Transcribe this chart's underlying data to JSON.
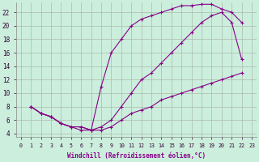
{
  "xlabel": "Windchill (Refroidissement éolien,°C)",
  "ylabel": "",
  "bg_color": "#cceedd",
  "grid_color": "#aabbaa",
  "line_color": "#880088",
  "xlim": [
    -0.5,
    23.5
  ],
  "ylim": [
    3.5,
    23.5
  ],
  "xticks": [
    0,
    1,
    2,
    3,
    4,
    5,
    6,
    7,
    8,
    9,
    10,
    11,
    12,
    13,
    14,
    15,
    16,
    17,
    18,
    19,
    20,
    21,
    22,
    23
  ],
  "yticks": [
    4,
    6,
    8,
    10,
    12,
    14,
    16,
    18,
    20,
    22
  ],
  "line1_x": [
    1,
    2,
    3,
    4,
    5,
    6,
    7,
    8,
    9,
    10,
    11,
    12,
    13,
    14,
    15,
    16,
    17,
    18,
    19,
    20,
    21,
    22
  ],
  "line1_y": [
    8,
    7,
    6.5,
    5.5,
    5,
    5,
    4.5,
    11,
    16,
    18,
    20,
    21,
    21.5,
    22,
    22.5,
    23,
    23,
    23.2,
    23.2,
    22.5,
    22,
    20.5
  ],
  "line2_x": [
    1,
    2,
    3,
    4,
    5,
    6,
    7,
    8,
    9,
    10,
    11,
    12,
    13,
    14,
    15,
    16,
    17,
    18,
    19,
    20,
    21,
    22
  ],
  "line2_y": [
    8,
    7,
    6.5,
    5.5,
    5,
    5,
    4.5,
    5,
    6,
    8,
    10,
    12,
    13,
    14.5,
    16,
    17.5,
    19,
    20.5,
    21.5,
    22,
    20.5,
    15
  ],
  "line3_x": [
    1,
    2,
    3,
    4,
    5,
    6,
    7,
    8,
    9,
    10,
    11,
    12,
    13,
    14,
    15,
    16,
    17,
    18,
    19,
    20,
    21,
    22
  ],
  "line3_y": [
    8,
    7,
    6.5,
    5.5,
    5,
    4.5,
    4.5,
    4.5,
    5,
    6,
    7,
    7.5,
    8,
    9,
    9.5,
    10,
    10.5,
    11,
    11.5,
    12,
    12.5,
    13
  ]
}
